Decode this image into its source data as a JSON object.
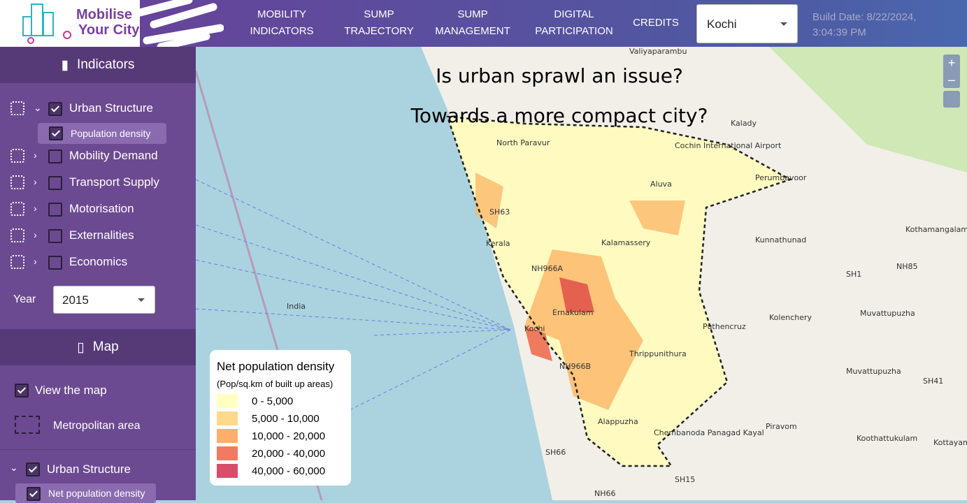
{
  "header": {
    "logo": [
      "Mobilise",
      "Your City"
    ],
    "nav": [
      [
        "MOBILITY",
        "INDICATORS"
      ],
      [
        "SUMP",
        "TRAJECTORY"
      ],
      [
        "SUMP",
        "MANAGEMENT"
      ],
      [
        "DIGITAL",
        "PARTICIPATION"
      ],
      [
        "CREDITS"
      ]
    ],
    "city": "Kochi",
    "build_date": [
      "Build Date: 8/22/2024,",
      "3:04:39 PM"
    ]
  },
  "sidebar": {
    "indicators_title": "Indicators",
    "indicators": [
      {
        "label": "Urban Structure",
        "children": [
          "Population density"
        ]
      },
      {
        "label": "Mobility Demand"
      },
      {
        "label": "Transport Supply"
      },
      {
        "label": "Motorisation"
      },
      {
        "label": "Externalities"
      },
      {
        "label": "Economics"
      }
    ],
    "year_label": "Year",
    "year": "2015",
    "map_title": "Map",
    "view_map": "View the map",
    "metro": "Metropolitan area",
    "layer_group": "Urban Structure",
    "layer": "Net population density"
  },
  "map": {
    "questions": [
      "Is urban sprawl an issue?",
      "Towards a more compact city?"
    ],
    "zoom_in": "+",
    "zoom_out": "–",
    "legend": {
      "title": "Net population density",
      "subtitle": "(Pop/sq.km of built up areas)",
      "items": [
        {
          "label": "0 - 5,000",
          "color": "#ffffc2"
        },
        {
          "label": "5,000 - 10,000",
          "color": "#fed98a"
        },
        {
          "label": "10,000 - 20,000",
          "color": "#fdae6b"
        },
        {
          "label": "20,000 - 40,000",
          "color": "#f27a60"
        },
        {
          "label": "40,000 - 60,000",
          "color": "#d84d6a"
        }
      ]
    },
    "labels": [
      "Valiyaparambu",
      "Kalady",
      "North Paravur",
      "Cochin International Airport",
      "Perumbavoor",
      "Aluva",
      "Kothamangalam",
      "Kunnathunad",
      "Kalamassery",
      "NH85",
      "SH1",
      "Ernakulam",
      "Kochi",
      "Kolenchery",
      "Muvattupuzha",
      "Puthencruz",
      "Thrippunithura",
      "Muvattupuzha",
      "SH41",
      "Piravom",
      "Koothattukulam",
      "SH66",
      "SH15",
      "NH66",
      "SH63",
      "Kerala",
      "India",
      "NH966A",
      "NH966B",
      "Alappuzha",
      "Chembanoda Panagad Kayal",
      "Kottayam"
    ]
  }
}
